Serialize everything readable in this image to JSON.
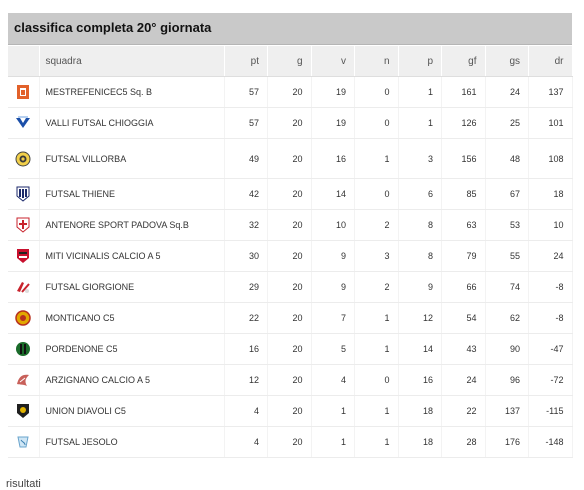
{
  "title": "classifica completa 20° giornata",
  "headers": {
    "team": "squadra",
    "pt": "pt",
    "g": "g",
    "v": "v",
    "n": "n",
    "p": "p",
    "gf": "gf",
    "gs": "gs",
    "dr": "dr"
  },
  "rows": [
    {
      "icon": "mestrefenice-logo-icon",
      "team": "MESTREFENICEC5 Sq. B",
      "pt": "57",
      "g": "20",
      "v": "19",
      "n": "0",
      "p": "1",
      "gf": "161",
      "gs": "24",
      "dr": "137"
    },
    {
      "icon": "valli-futsal-logo-icon",
      "team": "VALLI FUTSAL CHIOGGIA",
      "pt": "57",
      "g": "20",
      "v": "19",
      "n": "0",
      "p": "1",
      "gf": "126",
      "gs": "25",
      "dr": "101"
    },
    {
      "icon": "futsal-villorba-logo-icon",
      "team": "FUTSAL VILLORBA",
      "pt": "49",
      "g": "20",
      "v": "16",
      "n": "1",
      "p": "3",
      "gf": "156",
      "gs": "48",
      "dr": "108"
    },
    {
      "icon": "futsal-thiene-logo-icon",
      "team": "FUTSAL THIENE",
      "pt": "42",
      "g": "20",
      "v": "14",
      "n": "0",
      "p": "6",
      "gf": "85",
      "gs": "67",
      "dr": "18"
    },
    {
      "icon": "antenore-logo-icon",
      "team": "ANTENORE SPORT PADOVA Sq.B",
      "pt": "32",
      "g": "20",
      "v": "10",
      "n": "2",
      "p": "8",
      "gf": "63",
      "gs": "53",
      "dr": "10"
    },
    {
      "icon": "miti-vicinalis-logo-icon",
      "team": "MITI VICINALIS CALCIO A 5",
      "pt": "30",
      "g": "20",
      "v": "9",
      "n": "3",
      "p": "8",
      "gf": "79",
      "gs": "55",
      "dr": "24"
    },
    {
      "icon": "futsal-giorgione-logo-icon",
      "team": "FUTSAL GIORGIONE",
      "pt": "29",
      "g": "20",
      "v": "9",
      "n": "2",
      "p": "9",
      "gf": "66",
      "gs": "74",
      "dr": "-8"
    },
    {
      "icon": "monticano-logo-icon",
      "team": "MONTICANO C5",
      "pt": "22",
      "g": "20",
      "v": "7",
      "n": "1",
      "p": "12",
      "gf": "54",
      "gs": "62",
      "dr": "-8"
    },
    {
      "icon": "pordenone-logo-icon",
      "team": "PORDENONE C5",
      "pt": "16",
      "g": "20",
      "v": "5",
      "n": "1",
      "p": "14",
      "gf": "43",
      "gs": "90",
      "dr": "-47"
    },
    {
      "icon": "arzignano-logo-icon",
      "team": "ARZIGNANO CALCIO A 5",
      "pt": "12",
      "g": "20",
      "v": "4",
      "n": "0",
      "p": "16",
      "gf": "24",
      "gs": "96",
      "dr": "-72"
    },
    {
      "icon": "union-diavoli-logo-icon",
      "team": "UNION DIAVOLI C5",
      "pt": "4",
      "g": "20",
      "v": "1",
      "n": "1",
      "p": "18",
      "gf": "22",
      "gs": "137",
      "dr": "-115"
    },
    {
      "icon": "futsal-jesolo-logo-icon",
      "team": "FUTSAL JESOLO",
      "pt": "4",
      "g": "20",
      "v": "1",
      "n": "1",
      "p": "18",
      "gf": "28",
      "gs": "176",
      "dr": "-148"
    }
  ],
  "footer": "risultati"
}
